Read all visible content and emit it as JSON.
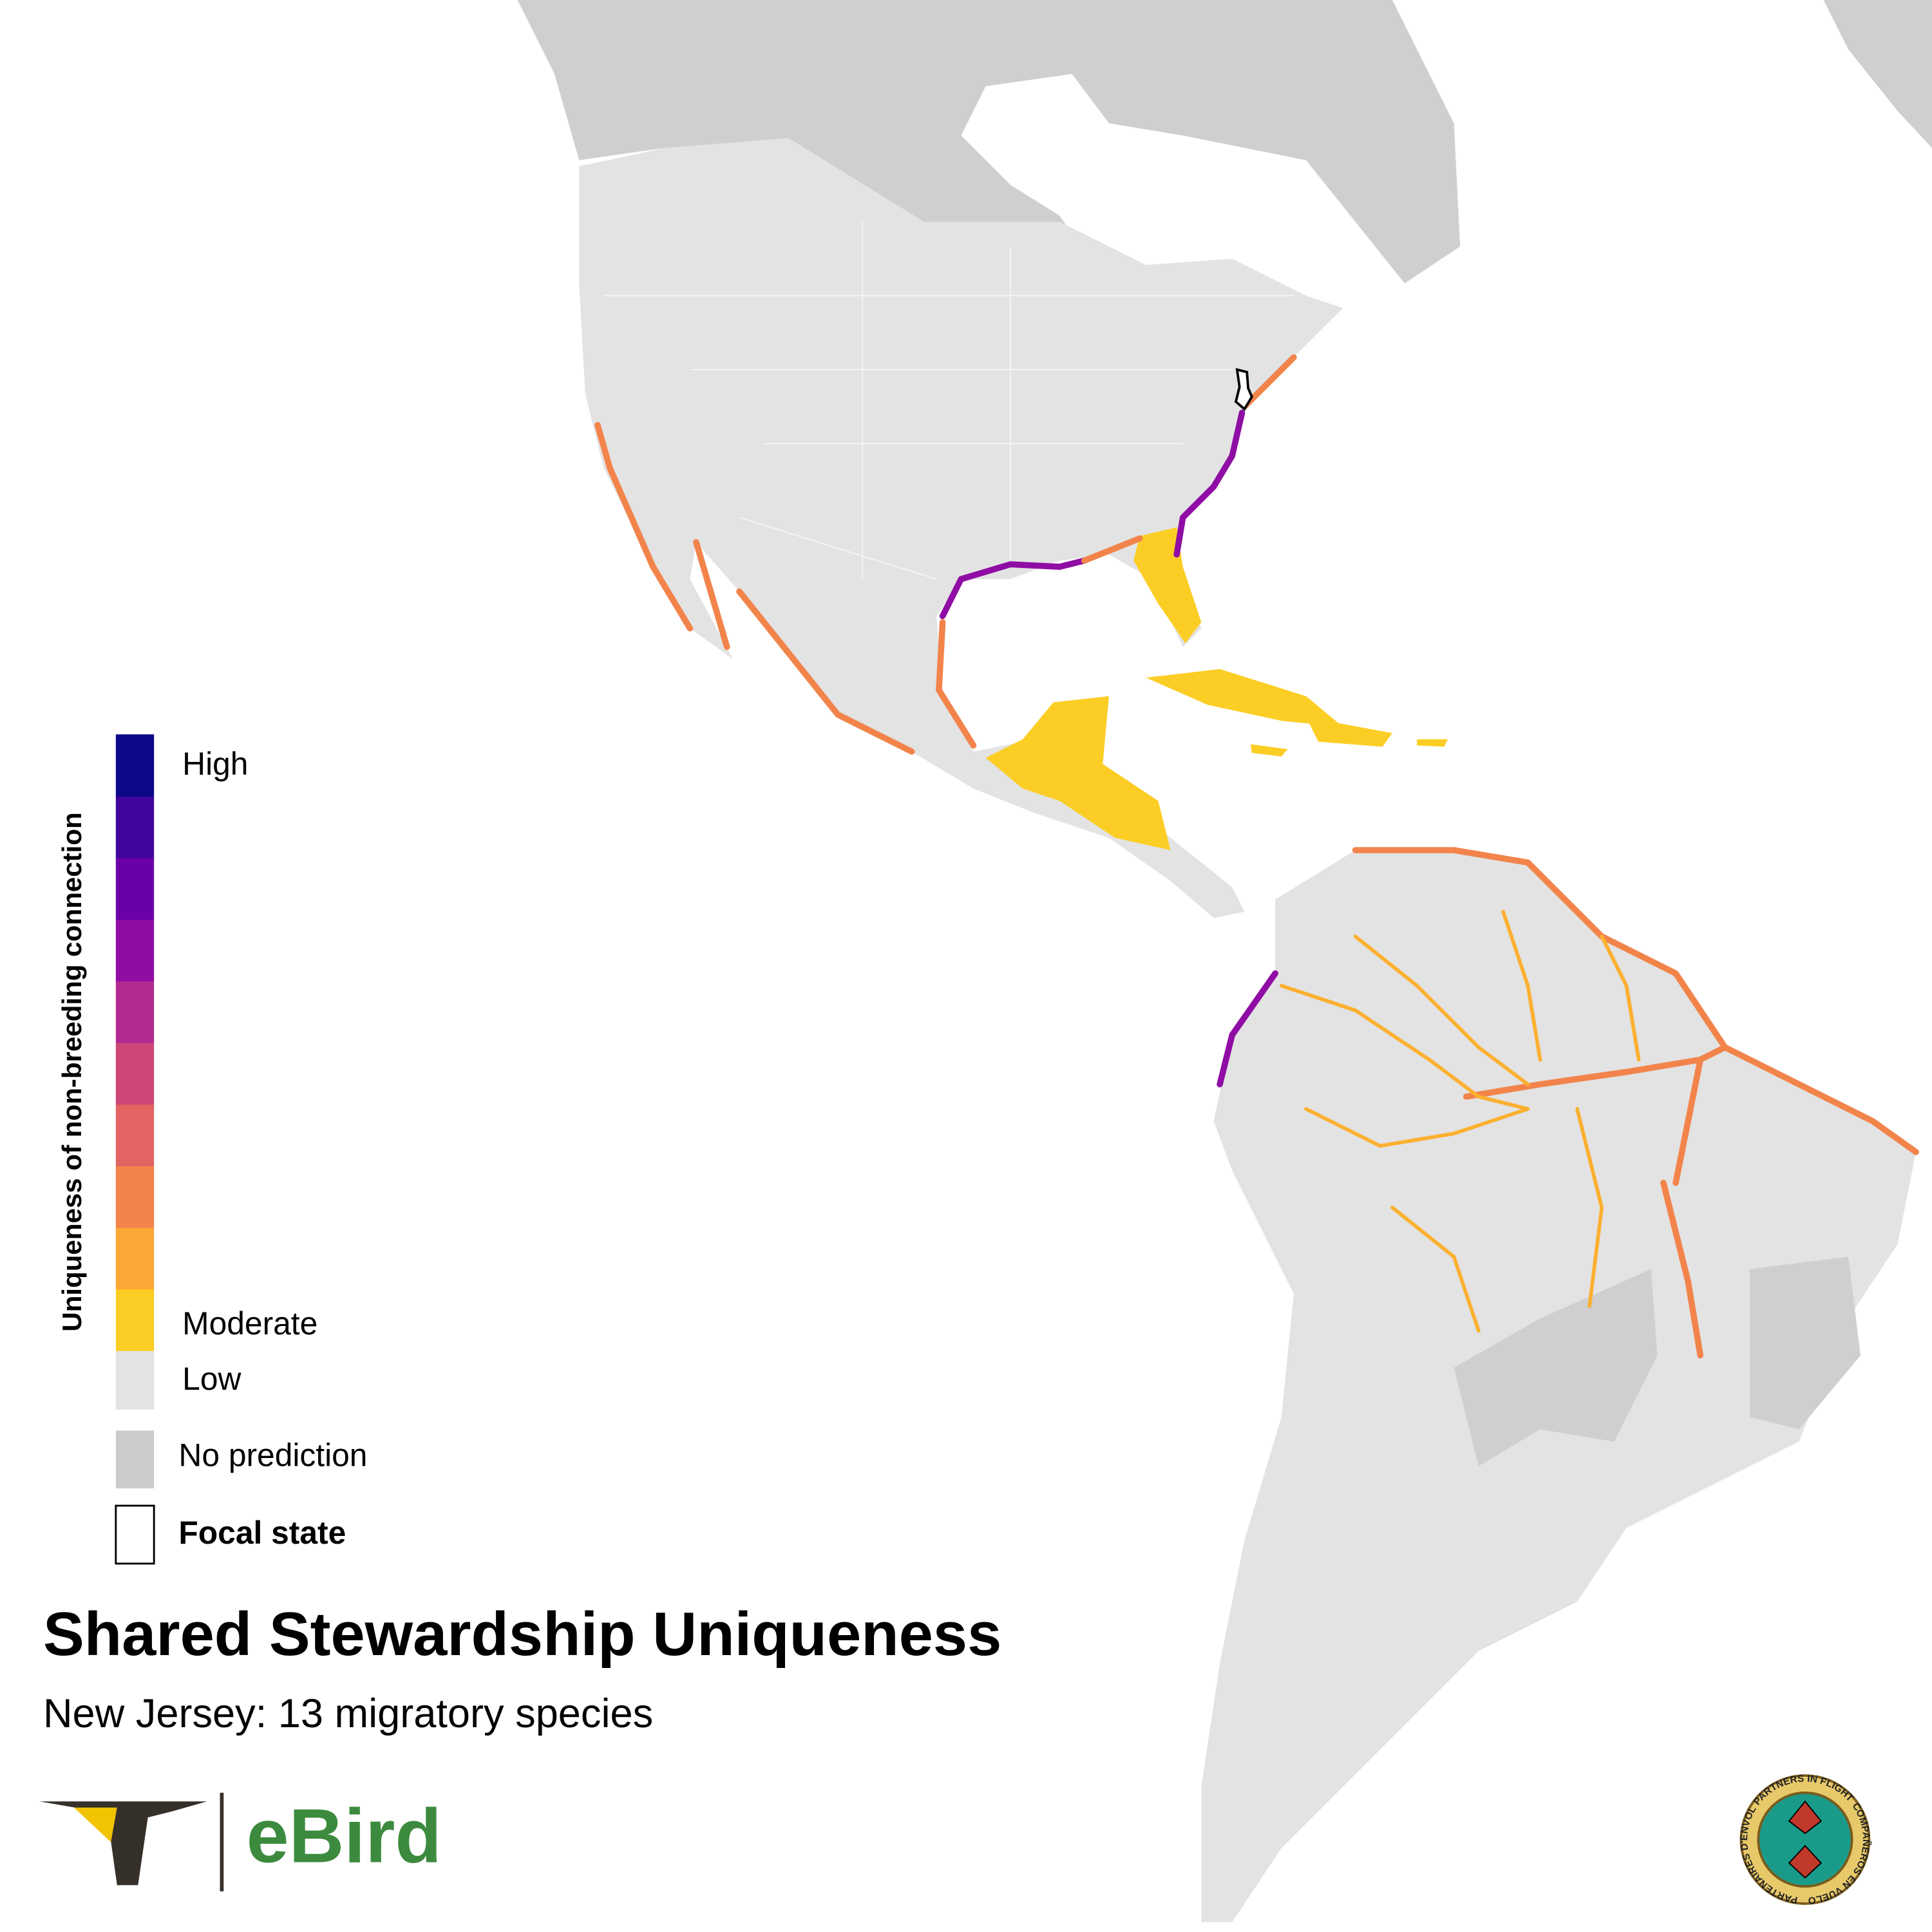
{
  "legend": {
    "title": "Uniqueness of non-breeding connection",
    "high_label": "High",
    "moderate_label": "Moderate",
    "low_label": "Low",
    "no_prediction_label": "No prediction",
    "focal_state_label": "Focal state",
    "scale_colors": [
      "#0d0887",
      "#41049d",
      "#6a00a8",
      "#8f0da4",
      "#b12a90",
      "#cc4778",
      "#e16462",
      "#f2844b",
      "#fca636",
      "#fcce25"
    ],
    "low_color": "#e3e3e3",
    "no_prediction_color": "#cccccc"
  },
  "header": {
    "title": "Shared Stewardship Uniqueness",
    "subtitle": "New Jersey: 13 migratory species"
  },
  "logos": {
    "ebird": "eBird",
    "seal_top": "PARTNERS IN FLIGHT",
    "seal_right": "COMPAÑEROS EN VUELO",
    "seal_left": "PARTENAIRES D'ENVOL"
  }
}
